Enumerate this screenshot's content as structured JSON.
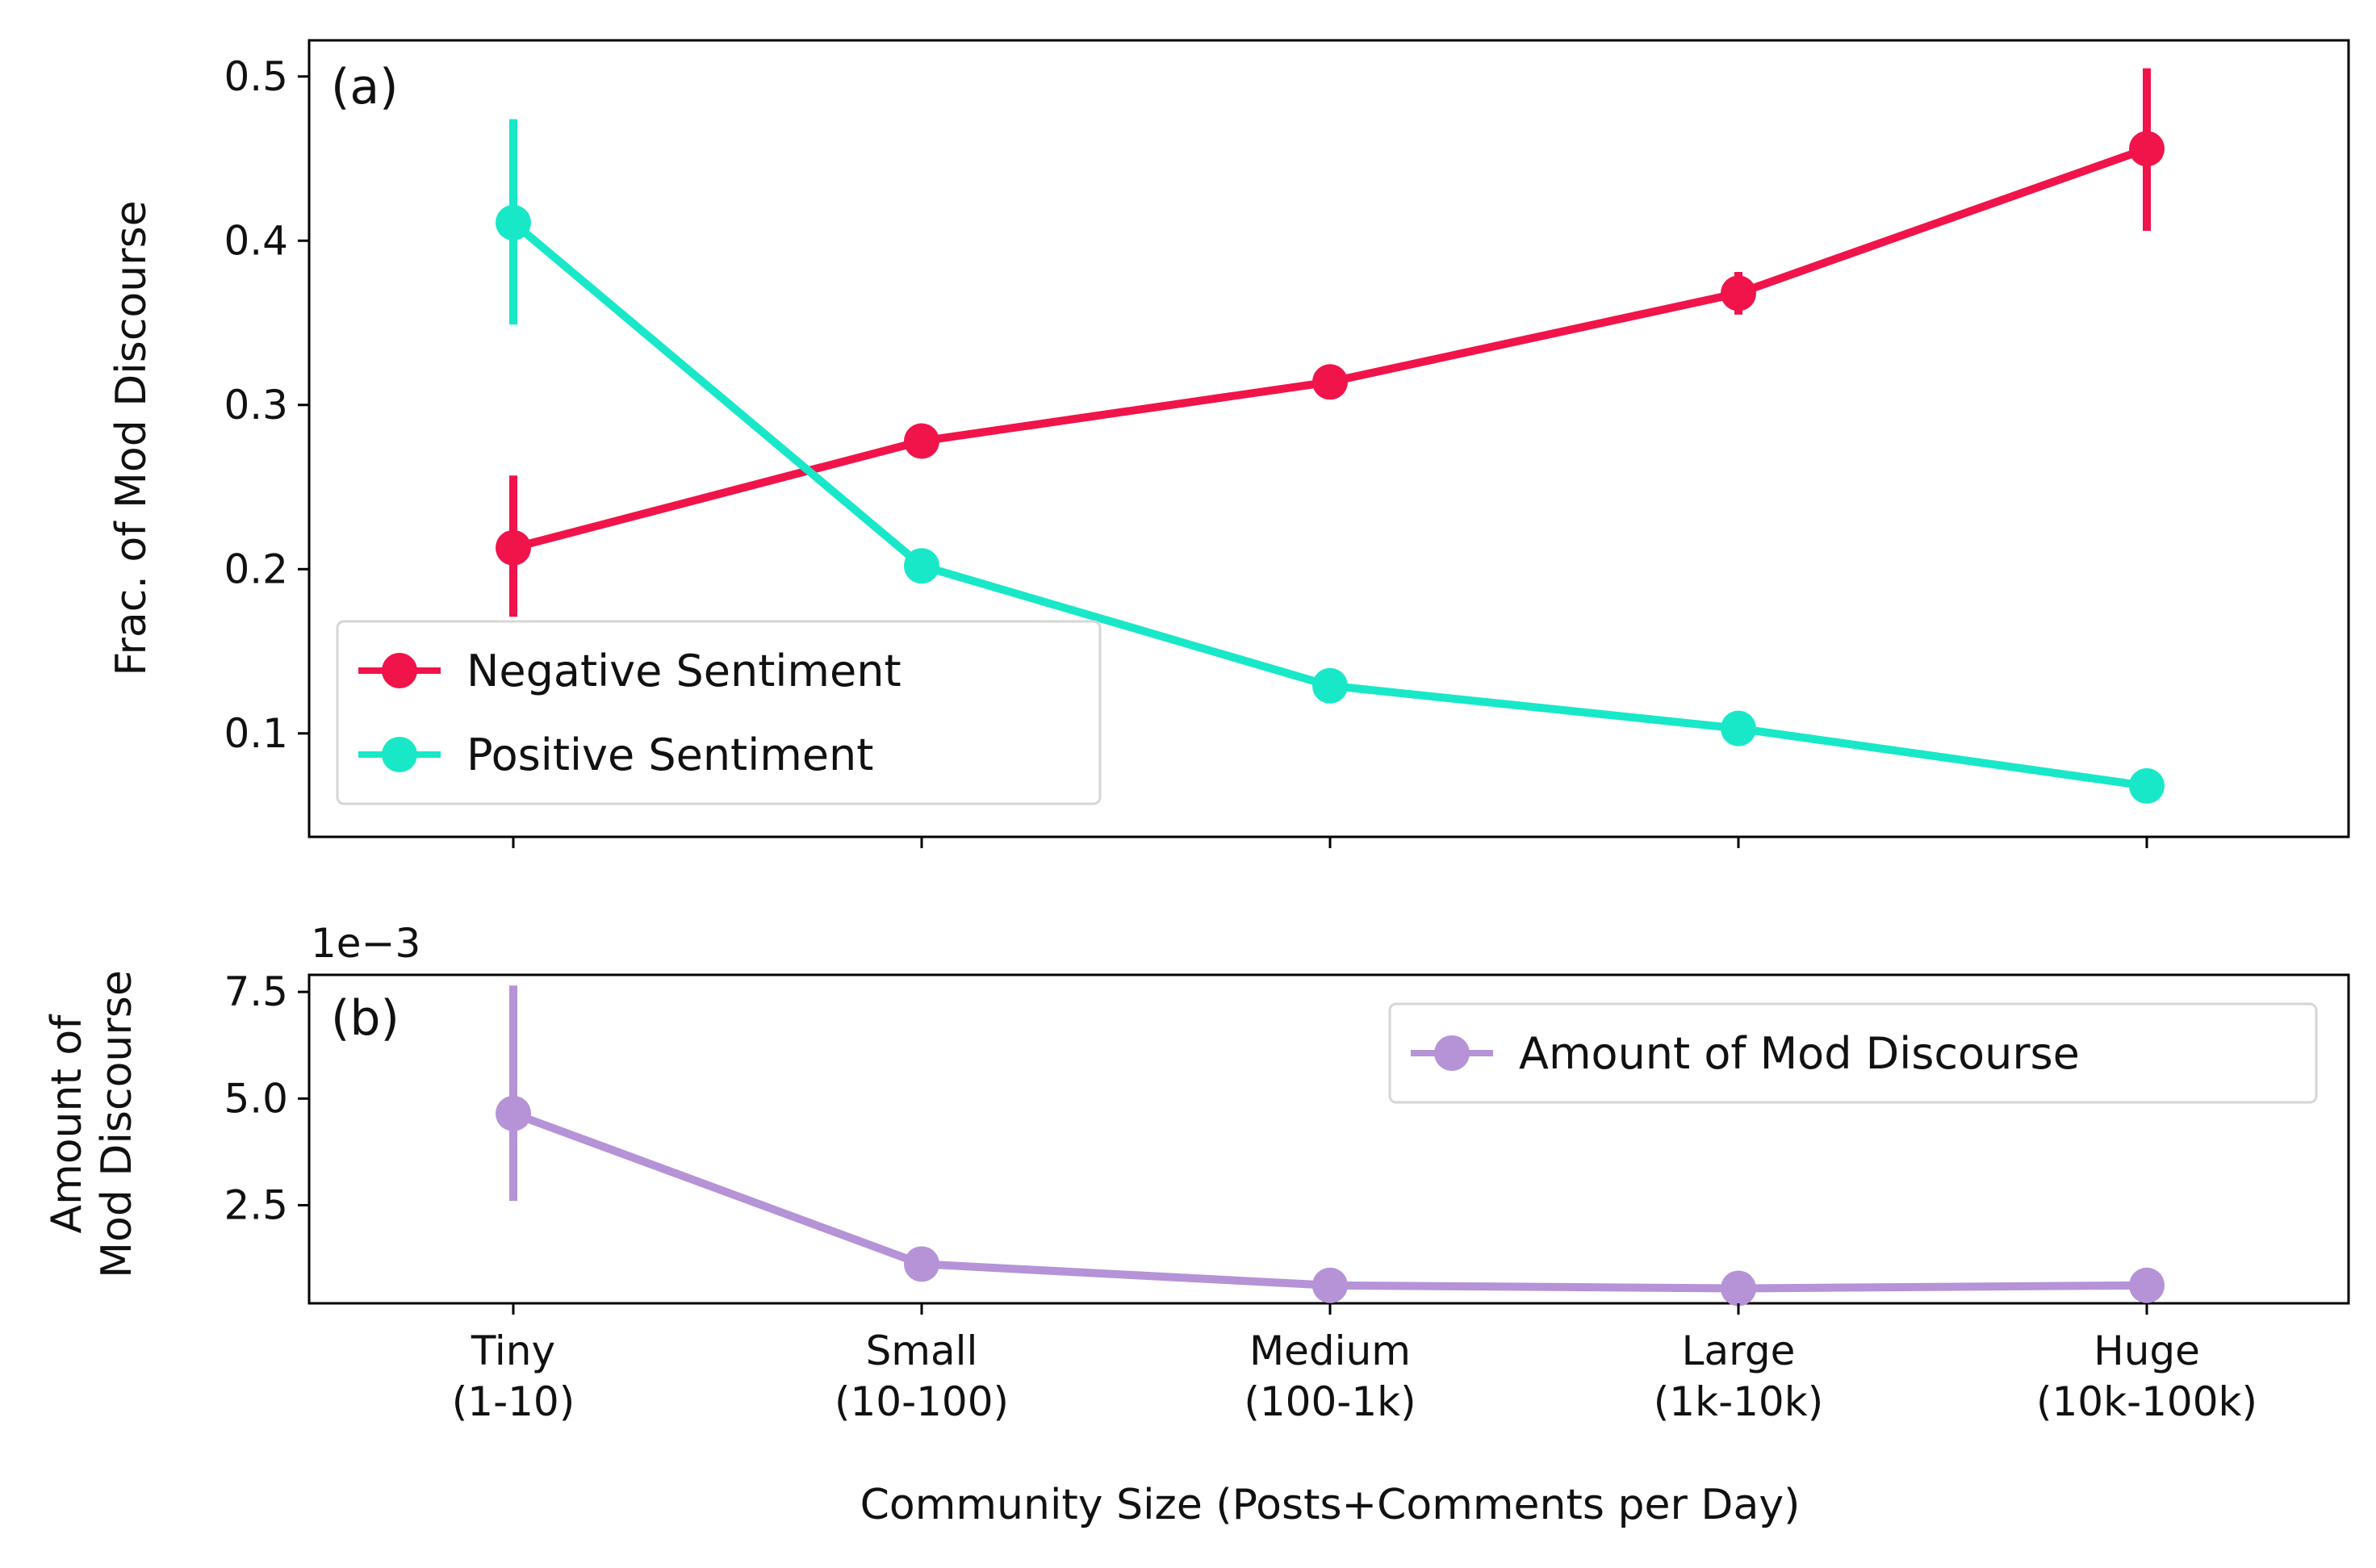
{
  "chart_data": [
    {
      "type": "line",
      "panel_label": "(a)",
      "title": "",
      "xlabel": "",
      "ylabel": "Frac. of Mod Discourse",
      "categories": [
        "Tiny\n(1-10)",
        "Small\n(10-100)",
        "Medium\n(100-1k)",
        "Large\n(1k-10k)",
        "Huge\n(10k-100k)"
      ],
      "ylim": [
        0.037,
        0.522
      ],
      "yticks": [
        0.1,
        0.2,
        0.3,
        0.4,
        0.5
      ],
      "ytick_labels": [
        "0.1",
        "0.2",
        "0.3",
        "0.4",
        "0.5"
      ],
      "grid": false,
      "legend": "lower-left",
      "series": [
        {
          "name": "Negative Sentiment",
          "color": "#F0144A",
          "values": [
            0.213,
            0.278,
            0.314,
            0.368,
            0.456
          ],
          "err_low": [
            0.171,
            0.272,
            0.309,
            0.355,
            0.406
          ],
          "err_high": [
            0.257,
            0.284,
            0.319,
            0.381,
            0.505
          ]
        },
        {
          "name": "Positive Sentiment",
          "color": "#18E8C8",
          "values": [
            0.411,
            0.202,
            0.129,
            0.103,
            0.068
          ],
          "err_low": [
            0.349,
            0.196,
            0.125,
            0.099,
            0.06
          ],
          "err_high": [
            0.474,
            0.208,
            0.133,
            0.107,
            0.076
          ]
        }
      ]
    },
    {
      "type": "line",
      "panel_label": "(b)",
      "title": "",
      "xlabel": "Community Size (Posts+Comments per Day)",
      "ylabel": "Amount of\nMod Discourse",
      "offset_text": "1e−3",
      "categories": [
        "Tiny\n(1-10)",
        "Small\n(10-100)",
        "Medium\n(100-1k)",
        "Large\n(1k-10k)",
        "Huge\n(10k-100k)"
      ],
      "ylim": [
        0.2,
        7.9
      ],
      "yticks": [
        2.5,
        5.0,
        7.5
      ],
      "ytick_labels": [
        "2.5",
        "5.0",
        "7.5"
      ],
      "grid": false,
      "legend": "upper-right",
      "series": [
        {
          "name": "Amount of Mod Discourse",
          "color": "#B593D6",
          "values": [
            4.65,
            1.12,
            0.62,
            0.55,
            0.62
          ],
          "err_low": [
            2.6,
            1.02,
            0.55,
            0.48,
            0.55
          ],
          "err_high": [
            7.65,
            1.22,
            0.69,
            0.62,
            0.69
          ]
        }
      ]
    }
  ]
}
